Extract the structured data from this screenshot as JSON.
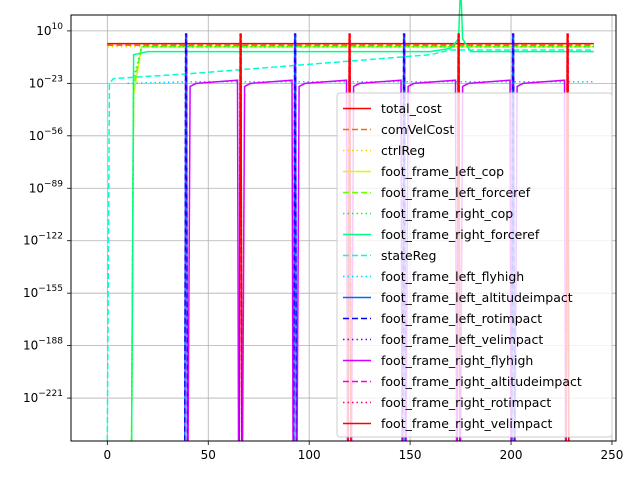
{
  "chart_data": {
    "type": "line",
    "title": "",
    "xlabel": "",
    "ylabel": "",
    "yscale": "log",
    "grid": true,
    "legend_position": "lower-right",
    "xlim": [
      -18,
      252
    ],
    "ylim_log10": [
      -248,
      20
    ],
    "x_ticks": [
      0,
      50,
      100,
      150,
      200,
      250
    ],
    "y_ticks_log10": [
      10,
      -23,
      -56,
      -89,
      -122,
      -155,
      -188,
      -221
    ],
    "y_tick_labels": [
      {
        "base": "10",
        "exp": "10"
      },
      {
        "base": "10",
        "exp": "−23"
      },
      {
        "base": "10",
        "exp": "−56"
      },
      {
        "base": "10",
        "exp": "−89"
      },
      {
        "base": "10",
        "exp": "−122"
      },
      {
        "base": "10",
        "exp": "−155"
      },
      {
        "base": "10",
        "exp": "−188"
      },
      {
        "base": "10",
        "exp": "−221"
      }
    ],
    "impact_times": [
      39,
      66,
      93,
      120,
      147,
      174,
      201,
      228
    ],
    "series": [
      {
        "name": "total_cost",
        "color": "#ff0000",
        "dash": "solid",
        "x": [
          0,
          241
        ],
        "log10_y": [
          2,
          2
        ]
      },
      {
        "name": "comVelCost",
        "color": "#ff6a00",
        "dash": "dashed",
        "x": [
          0,
          241
        ],
        "log10_y": [
          1,
          1
        ]
      },
      {
        "name": "ctrlReg",
        "color": "#ffd500",
        "dash": "dotted",
        "x": [
          0,
          241
        ],
        "log10_y": [
          0,
          0
        ]
      },
      {
        "name": "foot_frame_left_cop",
        "color": "#d4ff00",
        "dash": "solid",
        "x": [
          12,
          12,
          13,
          17,
          241
        ],
        "log10_y": [
          -248,
          -248,
          -30,
          0,
          0
        ]
      },
      {
        "name": "foot_frame_left_forceref",
        "color": "#6aff00",
        "dash": "dashed",
        "x": [
          12,
          12,
          13,
          17,
          241
        ],
        "log10_y": [
          -248,
          -248,
          -25,
          0,
          0
        ]
      },
      {
        "name": "foot_frame_right_cop",
        "color": "#00ff2a",
        "dash": "dotted",
        "x": [
          12,
          12,
          13,
          17,
          241
        ],
        "log10_y": [
          -248,
          -248,
          -20,
          0,
          0
        ]
      },
      {
        "name": "foot_frame_right_forceref",
        "color": "#00ff80",
        "dash": "solid",
        "x": [
          12,
          13,
          20,
          160,
          170,
          174,
          175,
          176,
          180,
          241
        ],
        "log10_y": [
          -248,
          -5,
          -3,
          -3,
          -1,
          5,
          40,
          5,
          -3,
          -3
        ]
      },
      {
        "name": "stateReg",
        "color": "#00ffd5",
        "dash": "dashed",
        "x": [
          0,
          0,
          1,
          3,
          40,
          80,
          120,
          160,
          170,
          241
        ],
        "log10_y": [
          -248,
          -248,
          -23,
          -20,
          -17,
          -13,
          -9,
          -5,
          -2,
          -2
        ]
      },
      {
        "name": "foot_frame_left_flyhigh",
        "color": "#00d4ff",
        "dash": "dotted",
        "x": [
          10,
          40,
          241
        ],
        "log10_y": [
          -23,
          -22,
          -22
        ]
      },
      {
        "name": "foot_frame_left_altitudeimpact",
        "color": "#006aff",
        "dash": "solid",
        "x": [],
        "log10_y": []
      },
      {
        "name": "foot_frame_left_rotimpact",
        "color": "#0000ff",
        "dash": "dashed",
        "x": [],
        "log10_y": []
      },
      {
        "name": "foot_frame_left_velimpact",
        "color": "#6a00ff",
        "dash": "dotted",
        "x": [],
        "log10_y": []
      },
      {
        "name": "foot_frame_right_flyhigh",
        "color": "#d400ff",
        "dash": "solid",
        "x": [],
        "log10_y": []
      },
      {
        "name": "foot_frame_right_altitudeimpact",
        "color": "#ff00d4",
        "dash": "dashed",
        "x": [],
        "log10_y": []
      },
      {
        "name": "foot_frame_right_rotimpact",
        "color": "#ff006a",
        "dash": "dotted",
        "x": [],
        "log10_y": []
      },
      {
        "name": "foot_frame_right_velimpact",
        "color": "#ff0000",
        "dash": "solid",
        "x": [],
        "log10_y": []
      }
    ]
  }
}
